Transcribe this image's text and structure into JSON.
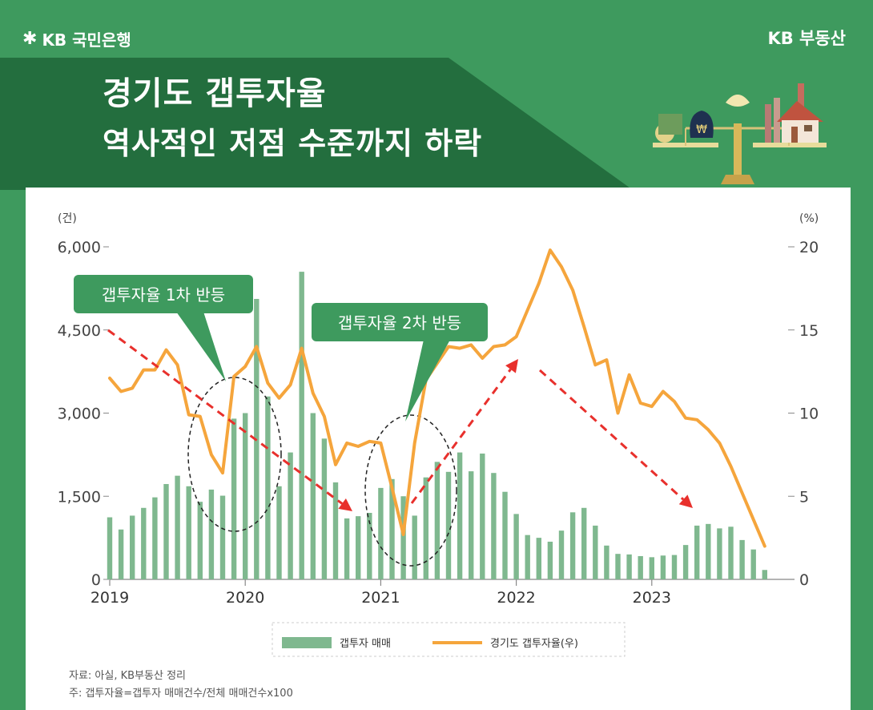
{
  "header": {
    "bank_logo_text": "KB 국민은행",
    "brand_right": "KB 부동산",
    "title_line1": "경기도 갭투자율",
    "title_line2": "역사적인 저점 수준까지 하락"
  },
  "notes": {
    "source": "자료: 아실, KB부동산 정리",
    "formula": "주: 갭투자율=갭투자 매매건수/전체 매매건수x100"
  },
  "callouts": {
    "first": "갭투자율 1차 반등",
    "second": "갭투자율 2차 반등"
  },
  "colors": {
    "bar": "#7fb88f",
    "line": "#f5a53c",
    "callout": "#3e9a5e",
    "arrow": "#e8302c"
  },
  "chart_data": {
    "type": "bar+line",
    "title": "경기도 갭투자율",
    "y_left_unit": "(건)",
    "y_right_unit": "(%)",
    "ylim_left": [
      0,
      6000
    ],
    "ylim_right": [
      0,
      20
    ],
    "y_left_ticks": [
      "0",
      "1,500",
      "3,000",
      "4,500",
      "6,000"
    ],
    "y_right_ticks": [
      "0",
      "5",
      "10",
      "15",
      "20"
    ],
    "x_tick_labels": [
      "2019",
      "2020",
      "2021",
      "2022",
      "2023"
    ],
    "start_month": "2019-01",
    "series": [
      {
        "name": "갭투자 매매",
        "type": "bar",
        "axis": "left",
        "values": [
          1120,
          900,
          1150,
          1290,
          1480,
          1720,
          1870,
          1680,
          1400,
          1620,
          1510,
          2900,
          3000,
          5060,
          3300,
          1680,
          2290,
          5550,
          3000,
          2540,
          1750,
          1100,
          1140,
          1200,
          1650,
          1810,
          1500,
          1150,
          1840,
          2120,
          1940,
          2290,
          1950,
          2270,
          1920,
          1580,
          1180,
          800,
          750,
          680,
          880,
          1210,
          1290,
          970,
          610,
          460,
          450,
          420,
          400,
          430,
          440,
          620,
          970,
          1000,
          920,
          950,
          710,
          540,
          170
        ]
      },
      {
        "name": "경기도 갭투자율(우)",
        "type": "line",
        "axis": "right",
        "values": [
          12.1,
          11.3,
          11.5,
          12.6,
          12.6,
          13.8,
          12.9,
          9.9,
          9.8,
          7.5,
          6.4,
          12.2,
          12.8,
          14.0,
          11.8,
          10.9,
          11.7,
          13.9,
          11.2,
          9.8,
          6.9,
          8.2,
          8.0,
          8.3,
          8.2,
          5.5,
          2.7,
          8.2,
          12.0,
          13.0,
          14.0,
          13.9,
          14.1,
          13.3,
          14.0,
          14.1,
          14.6,
          16.2,
          17.8,
          19.8,
          18.8,
          17.4,
          15.2,
          12.9,
          13.2,
          10.0,
          12.3,
          10.6,
          10.4,
          11.3,
          10.7,
          9.7,
          9.6,
          9.0,
          8.2,
          6.8,
          5.2,
          3.6,
          2.0
        ]
      }
    ],
    "legend": [
      "갭투자 매매",
      "경기도 갭투자율(우)"
    ],
    "legend_position": "bottom"
  }
}
